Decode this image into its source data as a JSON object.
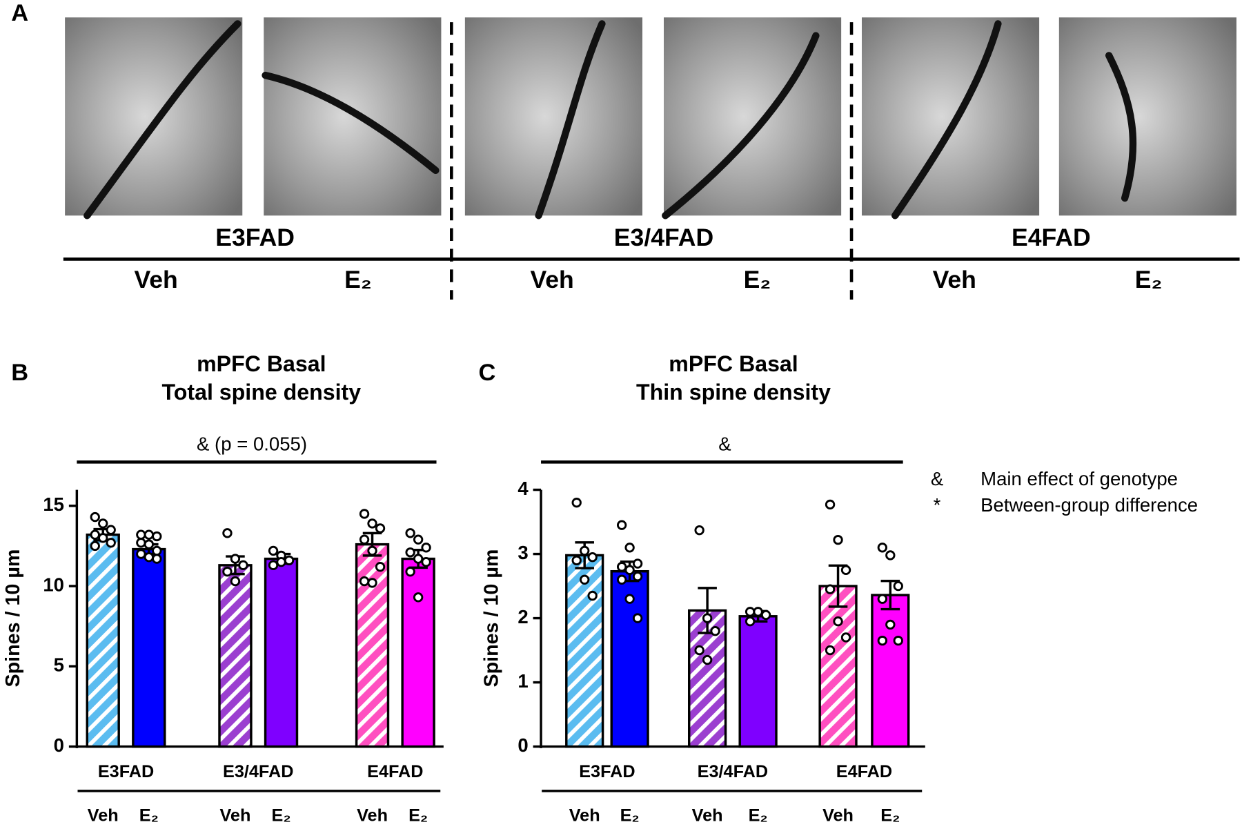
{
  "panel_a": {
    "letter": "A",
    "genotypes": [
      "E3FAD",
      "E3/4FAD",
      "E4FAD"
    ],
    "treatments": [
      "Veh",
      "E₂",
      "Veh",
      "E₂",
      "Veh",
      "E₂"
    ]
  },
  "legend": [
    {
      "symbol": "&",
      "text": "Main effect of genotype"
    },
    {
      "symbol": "*",
      "text": "Between-group difference"
    }
  ],
  "chart_data": [
    {
      "type": "bar",
      "letter": "B",
      "title": "mPFC Basal",
      "subtitle": "Total spine density",
      "annotation": "& (p = 0.055)",
      "ylabel": "Spines / 10 µm",
      "groups": [
        "E3FAD",
        "E3/4FAD",
        "E4FAD"
      ],
      "categories": [
        "Veh",
        "E₂",
        "Veh",
        "E₂",
        "Veh",
        "E₂"
      ],
      "values": [
        13.2,
        12.3,
        11.3,
        11.7,
        12.6,
        11.7
      ],
      "errors": [
        0.35,
        0.3,
        0.55,
        0.3,
        0.7,
        0.55
      ],
      "points": [
        [
          14.3,
          13.9,
          13.5,
          13.2,
          13.0,
          12.7,
          12.5
        ],
        [
          13.2,
          13.2,
          13.1,
          12.7,
          12.6,
          12.2,
          12.0,
          11.8,
          11.7
        ],
        [
          13.3,
          11.7,
          11.3,
          10.9,
          10.3
        ],
        [
          12.2,
          11.9,
          11.6,
          11.3,
          11.5
        ],
        [
          14.5,
          13.9,
          13.6,
          12.9,
          12.2,
          11.2,
          10.3,
          10.2
        ],
        [
          13.3,
          12.9,
          12.4,
          12.1,
          11.7,
          11.5,
          10.9,
          9.3
        ]
      ],
      "colors": [
        "#5bbcf0",
        "#0000ff",
        "#9b3fd0",
        "#7f00ff",
        "#ff4fc0",
        "#ff00ff"
      ],
      "hatched": [
        true,
        false,
        true,
        false,
        true,
        false
      ],
      "ylim": [
        0,
        16
      ],
      "yticks": [
        0,
        5,
        10,
        15
      ]
    },
    {
      "type": "bar",
      "letter": "C",
      "title": "mPFC Basal",
      "subtitle": "Thin spine density",
      "annotation": "&",
      "ylabel": "Spines / 10 µm",
      "groups": [
        "E3FAD",
        "E3/4FAD",
        "E4FAD"
      ],
      "categories": [
        "Veh",
        "E₂",
        "Veh",
        "E₂",
        "Veh",
        "E₂"
      ],
      "values": [
        2.98,
        2.73,
        2.12,
        2.03,
        2.5,
        2.36
      ],
      "errors": [
        0.2,
        0.15,
        0.35,
        0.08,
        0.32,
        0.22
      ],
      "points": [
        [
          3.8,
          3.05,
          2.95,
          2.9,
          2.6,
          2.35
        ],
        [
          3.45,
          3.1,
          2.85,
          2.8,
          2.75,
          2.65,
          2.6,
          2.3,
          2.0
        ],
        [
          3.37,
          2.0,
          1.8,
          1.5,
          1.35
        ],
        [
          2.1,
          2.1,
          2.05,
          1.95
        ],
        [
          3.77,
          3.22,
          2.75,
          2.45,
          1.95,
          1.7,
          1.5
        ],
        [
          3.1,
          2.98,
          2.5,
          2.3,
          1.9,
          1.65,
          1.65
        ]
      ],
      "colors": [
        "#5bbcf0",
        "#0000ff",
        "#9b3fd0",
        "#7f00ff",
        "#ff4fc0",
        "#ff00ff"
      ],
      "hatched": [
        true,
        false,
        true,
        false,
        true,
        false
      ],
      "ylim": [
        0,
        4
      ],
      "yticks": [
        0,
        1,
        2,
        3,
        4
      ]
    }
  ]
}
